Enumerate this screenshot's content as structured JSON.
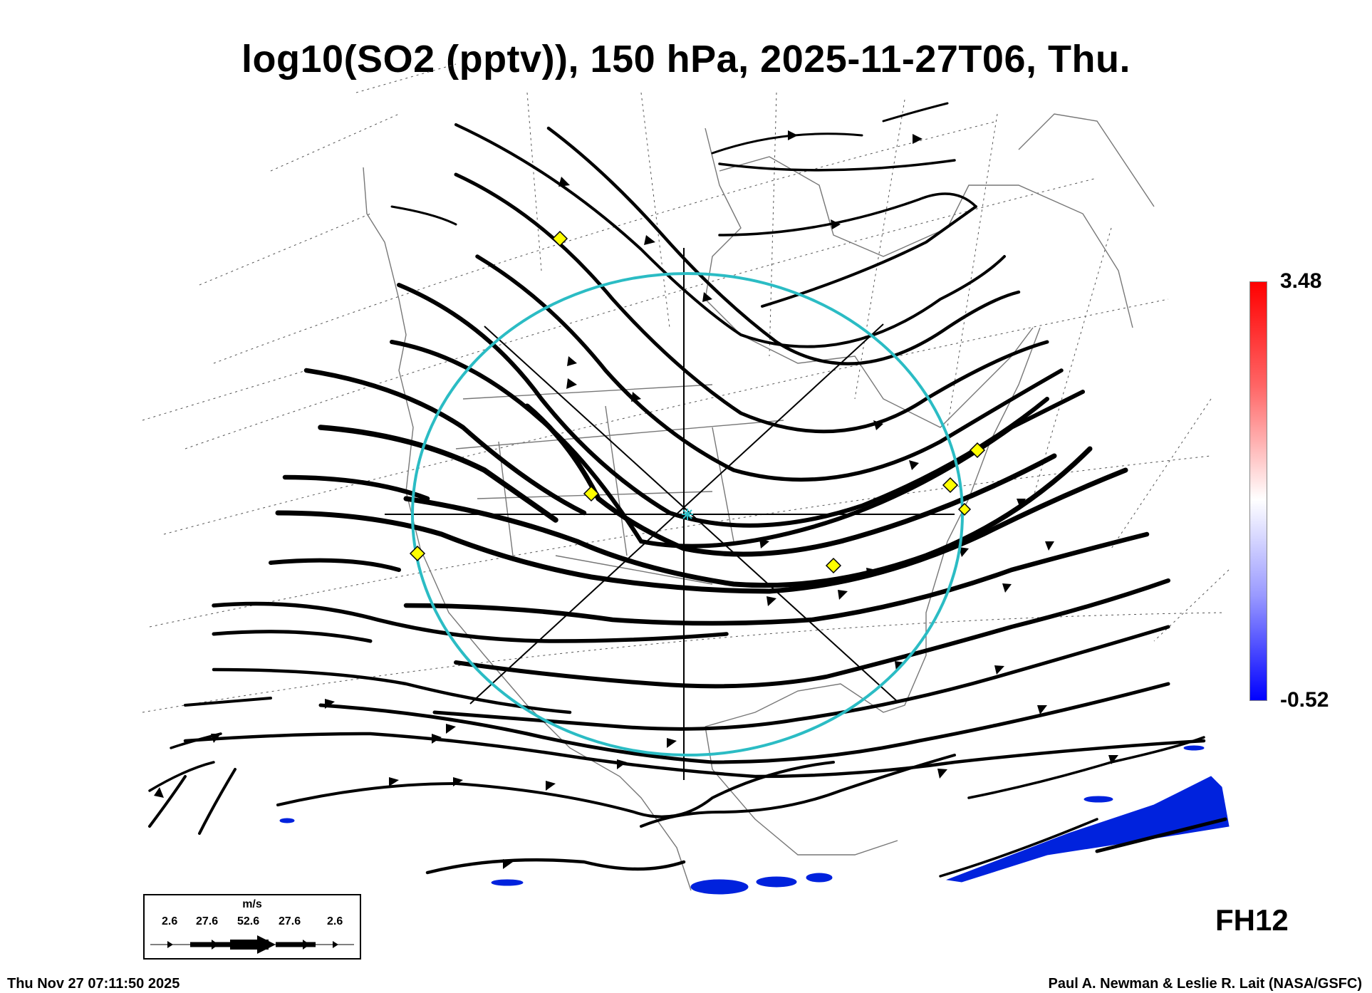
{
  "title": "log10(SO2 (pptv)), 150 hPa, 2025-11-27T06, Thu.",
  "colorbar": {
    "max_label": "3.48",
    "min_label": "-0.52",
    "colors": [
      "#ff0000",
      "#ffffff",
      "#0000ff"
    ]
  },
  "forecast_label": "FH12",
  "legend": {
    "unit": "m/s",
    "values": [
      "2.6",
      "27.6",
      "52.6",
      "27.6",
      "2.6"
    ]
  },
  "footer": {
    "timestamp": "Thu Nov 27 07:11:50 2025",
    "credit": "Paul A. Newman & Leslie R. Lait (NASA/GSFC)"
  },
  "map": {
    "region": "North America",
    "overlay_circle_color": "#2bbcc4",
    "marker_color": "#ffff00",
    "so2_fill_color": "#0022dd",
    "streamline_color": "#000000"
  }
}
